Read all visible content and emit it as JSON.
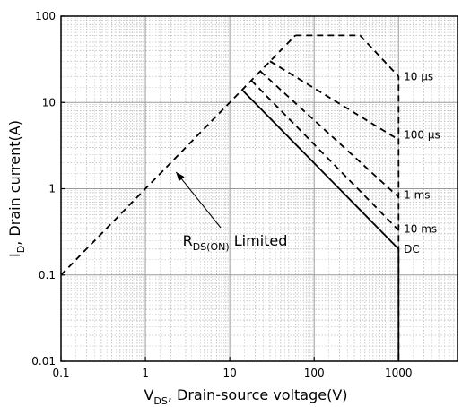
{
  "chart_data": {
    "type": "line",
    "title": "",
    "xlabel": {
      "main": "V",
      "sub": "DS",
      "rest": ", Drain-source voltage(V)"
    },
    "ylabel": {
      "main": "I",
      "sub": "D",
      "rest": ", Drain current(A)"
    },
    "xscale": "log",
    "yscale": "log",
    "xlim": [
      0.1,
      5000
    ],
    "ylim": [
      0.01,
      100
    ],
    "grid": true,
    "x_ticks": [
      {
        "value": 0.1,
        "label": "0.1"
      },
      {
        "value": 1,
        "label": "1"
      },
      {
        "value": 10,
        "label": "10"
      },
      {
        "value": 100,
        "label": "100"
      },
      {
        "value": 1000,
        "label": "1000"
      }
    ],
    "y_ticks": [
      {
        "value": 0.01,
        "label": "0.01"
      },
      {
        "value": 0.1,
        "label": "0.1"
      },
      {
        "value": 1,
        "label": "1"
      },
      {
        "value": 10,
        "label": "10"
      },
      {
        "value": 100,
        "label": "100"
      }
    ],
    "series": [
      {
        "name": "RDS(ON) Limited",
        "style": "dashed",
        "color": "#000000",
        "points": [
          [
            0.1,
            0.1
          ],
          [
            60,
            60
          ]
        ]
      },
      {
        "name": "10 µs",
        "style": "dashed",
        "color": "#000000",
        "points": [
          [
            60,
            60
          ],
          [
            350,
            60
          ],
          [
            1000,
            20
          ],
          [
            1000,
            0.01
          ]
        ]
      },
      {
        "name": "100 µs",
        "style": "dashed",
        "color": "#000000",
        "points": [
          [
            30,
            30
          ],
          [
            1000,
            3.7
          ]
        ]
      },
      {
        "name": "1 ms",
        "style": "dashed",
        "color": "#000000",
        "points": [
          [
            23,
            23
          ],
          [
            1000,
            0.8
          ]
        ]
      },
      {
        "name": "10 ms",
        "style": "dashed",
        "color": "#000000",
        "points": [
          [
            18,
            18
          ],
          [
            1000,
            0.33
          ]
        ]
      },
      {
        "name": "DC",
        "style": "solid",
        "color": "#000000",
        "points": [
          [
            14,
            14
          ],
          [
            1000,
            0.2
          ],
          [
            1000,
            0.01
          ]
        ]
      }
    ],
    "annotations": [
      {
        "text": "10 µs",
        "x": 1100,
        "y": 20
      },
      {
        "text": "100 µs",
        "x": 1100,
        "y": 4.2
      },
      {
        "text": "1 ms",
        "x": 1100,
        "y": 0.85
      },
      {
        "text": "10 ms",
        "x": 1100,
        "y": 0.34
      },
      {
        "text": "DC",
        "x": 1100,
        "y": 0.2
      }
    ],
    "rds_label": {
      "main": "R",
      "sub": "DS(ON)",
      "rest": " Limited",
      "x": 2.2,
      "y": 0.38,
      "arrow_to": [
        2.2,
        1.8
      ]
    }
  }
}
